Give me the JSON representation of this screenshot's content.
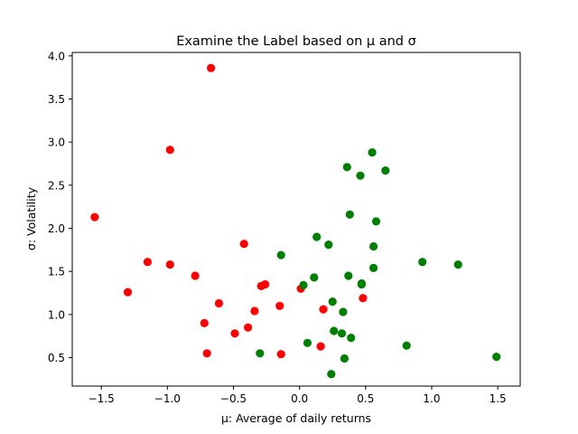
{
  "chart_data": {
    "type": "scatter",
    "title": "Examine the Label based on μ and σ",
    "xlabel": "μ: Average of daily returns",
    "ylabel": "σ: Volatility",
    "xlim": [
      -1.72,
      1.67
    ],
    "ylim": [
      0.17,
      4.04
    ],
    "xticks": [
      -1.5,
      -1.0,
      -0.5,
      0.0,
      0.5,
      1.0,
      1.5
    ],
    "xtick_labels": [
      "−1.5",
      "−1.0",
      "−0.5",
      "0.0",
      "0.5",
      "1.0",
      "1.5"
    ],
    "yticks": [
      0.5,
      1.0,
      1.5,
      2.0,
      2.5,
      3.0,
      3.5,
      4.0
    ],
    "ytick_labels": [
      "0.5",
      "1.0",
      "1.5",
      "2.0",
      "2.5",
      "3.0",
      "3.5",
      "4.0"
    ],
    "grid": false,
    "series": [
      {
        "color": "#ff0000",
        "points": [
          [
            -1.55,
            2.13
          ],
          [
            -1.3,
            1.26
          ],
          [
            -1.15,
            1.61
          ],
          [
            -0.98,
            2.91
          ],
          [
            -0.98,
            1.58
          ],
          [
            -0.79,
            1.45
          ],
          [
            -0.72,
            0.9
          ],
          [
            -0.7,
            0.55
          ],
          [
            -0.67,
            3.86
          ],
          [
            -0.61,
            1.13
          ],
          [
            -0.49,
            0.78
          ],
          [
            -0.42,
            1.82
          ],
          [
            -0.39,
            0.85
          ],
          [
            -0.34,
            1.04
          ],
          [
            -0.29,
            1.33
          ],
          [
            -0.26,
            1.35
          ],
          [
            -0.15,
            1.1
          ],
          [
            -0.14,
            0.54
          ],
          [
            0.01,
            1.3
          ],
          [
            0.16,
            0.63
          ],
          [
            0.18,
            1.06
          ],
          [
            0.48,
            1.19
          ]
        ]
      },
      {
        "color": "#008000",
        "points": [
          [
            -0.3,
            0.55
          ],
          [
            -0.14,
            1.69
          ],
          [
            0.03,
            1.34
          ],
          [
            0.06,
            0.67
          ],
          [
            0.11,
            1.43
          ],
          [
            0.13,
            1.9
          ],
          [
            0.22,
            1.81
          ],
          [
            0.24,
            0.31
          ],
          [
            0.25,
            1.15
          ],
          [
            0.26,
            0.81
          ],
          [
            0.32,
            0.78
          ],
          [
            0.33,
            1.03
          ],
          [
            0.34,
            0.49
          ],
          [
            0.36,
            2.71
          ],
          [
            0.37,
            1.45
          ],
          [
            0.38,
            2.16
          ],
          [
            0.39,
            0.73
          ],
          [
            0.46,
            2.61
          ],
          [
            0.47,
            1.36
          ],
          [
            0.47,
            1.35
          ],
          [
            0.55,
            2.88
          ],
          [
            0.56,
            1.79
          ],
          [
            0.56,
            1.54
          ],
          [
            0.58,
            2.08
          ],
          [
            0.65,
            2.67
          ],
          [
            0.81,
            0.64
          ],
          [
            0.93,
            1.61
          ],
          [
            1.2,
            1.58
          ],
          [
            1.49,
            0.51
          ]
        ]
      }
    ]
  }
}
